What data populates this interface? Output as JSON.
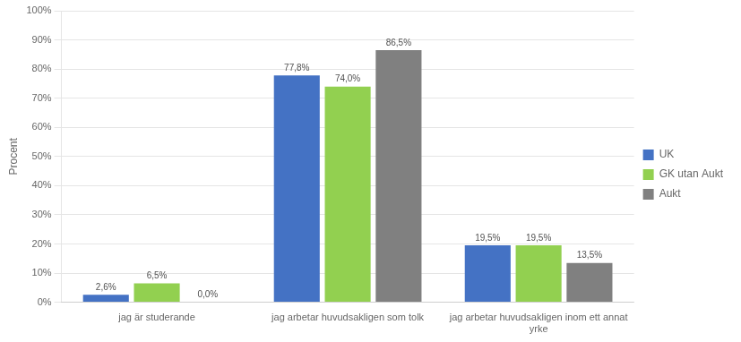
{
  "chart_data": {
    "type": "bar",
    "categories": [
      "jag är studerande",
      "jag arbetar huvudsakligen som tolk",
      "jag arbetar huvudsakligen inom ett annat\nyrke"
    ],
    "series": [
      {
        "name": "UK",
        "color": "#4472c4",
        "values": [
          2.6,
          77.8,
          19.5
        ],
        "value_labels": [
          "2,6%",
          "77,8%",
          "19,5%"
        ]
      },
      {
        "name": "GK utan Aukt",
        "color": "#92d050",
        "values": [
          6.5,
          74.0,
          19.5
        ],
        "value_labels": [
          "6,5%",
          "74,0%",
          "19,5%"
        ]
      },
      {
        "name": "Aukt",
        "color": "#808080",
        "values": [
          0.0,
          86.5,
          13.5
        ],
        "value_labels": [
          "0,0%",
          "86,5%",
          "13,5%"
        ]
      }
    ],
    "ylabel": "Procent",
    "ylim": [
      0,
      100
    ],
    "yticks": [
      {
        "value": 0,
        "label": "0%"
      },
      {
        "value": 10,
        "label": "10%"
      },
      {
        "value": 20,
        "label": "20%"
      },
      {
        "value": 30,
        "label": "30%"
      },
      {
        "value": 40,
        "label": "40%"
      },
      {
        "value": 50,
        "label": "50%"
      },
      {
        "value": 60,
        "label": "60%"
      },
      {
        "value": 70,
        "label": "70%"
      },
      {
        "value": 80,
        "label": "80%"
      },
      {
        "value": 90,
        "label": "90%"
      },
      {
        "value": 100,
        "label": "100%"
      }
    ],
    "grid": true,
    "legend": "right",
    "data_labels": true
  }
}
